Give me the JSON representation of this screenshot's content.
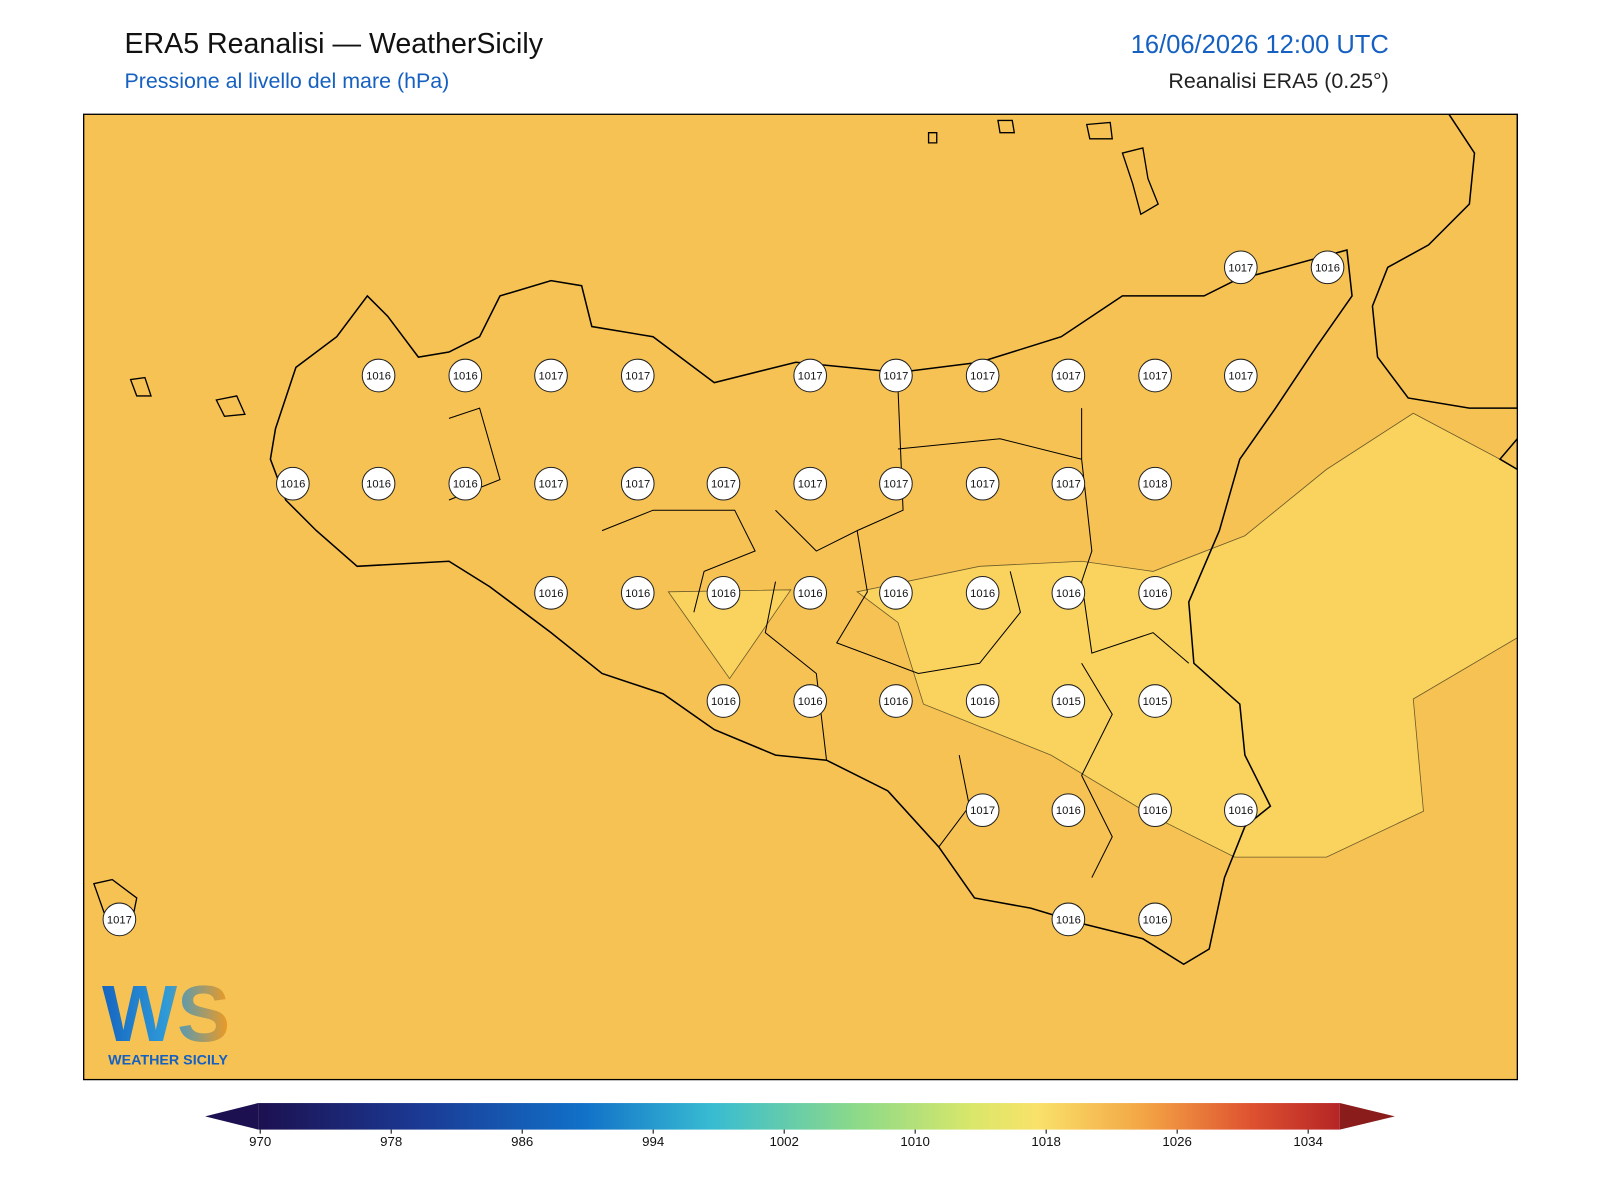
{
  "header": {
    "title": "ERA5 Reanalisi — WeatherSicily",
    "subtitle": "Pressione al livello del mare (hPa)",
    "datetime": "16/06/2026 12:00 UTC",
    "source": "Reanalisi ERA5 (0.25°)"
  },
  "stations": [
    1017,
    1016,
    1016,
    1016,
    1017,
    1017,
    1017,
    1017,
    1017,
    1017,
    1017,
    1017,
    1016,
    1016,
    1016,
    1017,
    1017,
    1017,
    1017,
    1017,
    1017,
    1017,
    1018,
    1016,
    1016,
    1016,
    1016,
    1016,
    1016,
    1016,
    1016,
    1016,
    1016,
    1016,
    1016,
    1015,
    1015,
    1017,
    1016,
    1016,
    1016,
    1017,
    1016,
    1016
  ],
  "colorbar": {
    "ticks": [
      970,
      978,
      986,
      994,
      1002,
      1010,
      1018,
      1026,
      1034
    ]
  },
  "logo": {
    "mark": "WS",
    "name": "WEATHER SICILY"
  }
}
